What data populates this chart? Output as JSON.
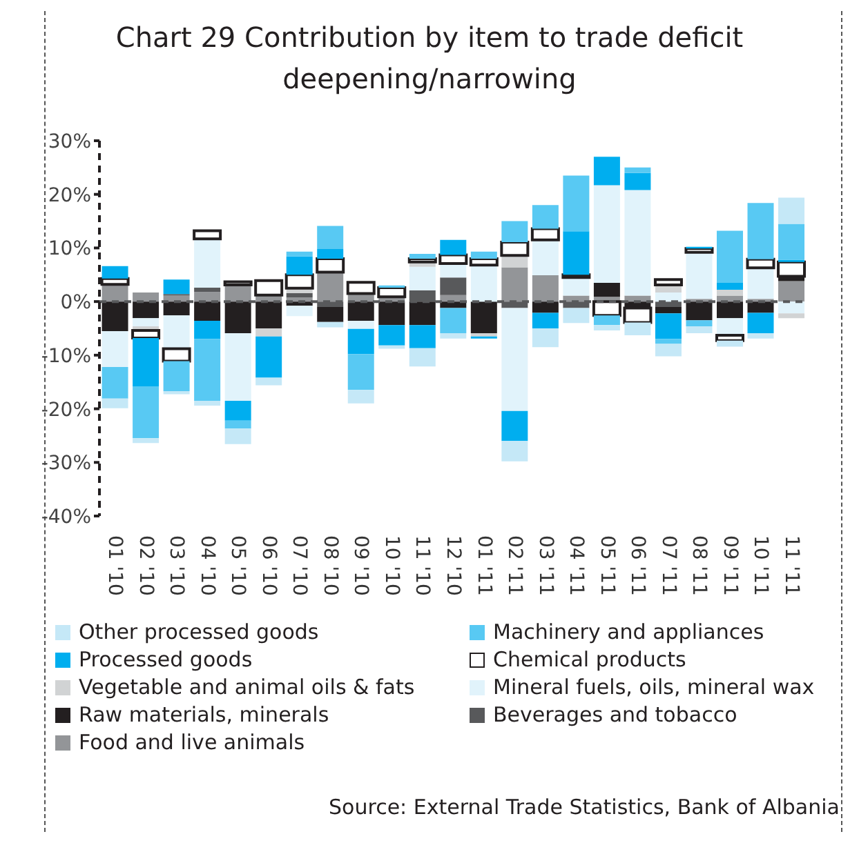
{
  "chart_data": {
    "type": "bar",
    "title": "Chart 29 Contribution by item to trade deficit deepening/narrowing",
    "categories": [
      "01 '10",
      "02 '10",
      "03 '10",
      "04 '10",
      "05 '10",
      "06 '10",
      "07 '10",
      "08 '10",
      "09 '10",
      "10 '10",
      "11 '10",
      "12 '10",
      "01 '11",
      "02 '11",
      "03 '11",
      "04 '11",
      "05 '11",
      "06 '11",
      "07 '11",
      "08 '11",
      "09 '11",
      "10 '11",
      "11 '11"
    ],
    "series": [
      {
        "name": "Food and live animals",
        "color": "#939598",
        "values": [
          3.2,
          1.7,
          1.1,
          1.8,
          3.1,
          1.2,
          0.8,
          5.5,
          1.5,
          0.9,
          null,
          1.2,
          null,
          6.4,
          4.9,
          1.1,
          0.9,
          1.1,
          null,
          0.5,
          1.1,
          0.5,
          3.8
        ]
      },
      {
        "name": "Beverages and tobacco",
        "color": "#58595b",
        "values": [
          null,
          null,
          0.3,
          0.8,
          null,
          null,
          0.8,
          -1.0,
          null,
          null,
          2.1,
          3.3,
          null,
          -1.2,
          null,
          -1.2,
          null,
          null,
          -1.0,
          null,
          null,
          null,
          null
        ]
      },
      {
        "name": "Raw materials, minerals",
        "color": "#231f20",
        "values": [
          -5.5,
          -3.1,
          -2.6,
          -3.6,
          -5.9,
          -5.0,
          -0.8,
          -2.8,
          -3.6,
          -4.4,
          -4.4,
          -1.2,
          -5.9,
          null,
          -2.1,
          null,
          2.6,
          -1.2,
          -1.2,
          -3.5,
          -3.1,
          -2.1,
          0.9
        ]
      },
      {
        "name": "Mineral fuels, oils, mineral wax",
        "color": "#e1f3fb",
        "values": [
          -6.7,
          -1.5,
          -6.2,
          9.1,
          -12.6,
          null,
          -1.9,
          null,
          -1.5,
          null,
          4.4,
          2.6,
          6.8,
          -19.2,
          6.6,
          3.4,
          18.2,
          19.7,
          1.7,
          8.7,
          -3.2,
          5.8,
          -2.2
        ]
      },
      {
        "name": "Vegetable and animal oils & fats",
        "color": "#d1d3d4",
        "values": [
          null,
          -0.8,
          null,
          null,
          null,
          -1.5,
          0.9,
          null,
          null,
          null,
          0.9,
          null,
          -0.6,
          2.2,
          null,
          null,
          null,
          null,
          1.4,
          null,
          1.1,
          null,
          -0.9
        ]
      },
      {
        "name": "Chemical products",
        "color": "#ffffff",
        "values": [
          1.1,
          -1.4,
          -2.3,
          1.5,
          0.6,
          2.7,
          2.5,
          2.5,
          2.1,
          1.7,
          0.6,
          1.6,
          1.2,
          2.5,
          2.1,
          0.5,
          -2.6,
          -2.7,
          1.0,
          0.7,
          -1.0,
          1.6,
          2.7
        ]
      },
      {
        "name": "Processed goods",
        "color": "#00aeef",
        "values": [
          2.3,
          -9.0,
          2.7,
          -3.4,
          -3.7,
          -7.7,
          3.4,
          1.8,
          -4.7,
          -3.8,
          -4.3,
          2.8,
          -0.4,
          -5.6,
          -2.9,
          8.1,
          5.3,
          3.2,
          -4.8,
          0.3,
          1.3,
          -3.8,
          0.4
        ]
      },
      {
        "name": "Machinery and appliances",
        "color": "#58c9f3",
        "values": [
          -5.9,
          -9.7,
          -5.6,
          -11.5,
          -1.5,
          null,
          0.9,
          4.3,
          -6.7,
          0.4,
          0.9,
          -4.7,
          1.3,
          3.9,
          4.4,
          10.4,
          -1.8,
          1.0,
          -0.9,
          -1.1,
          9.7,
          10.5,
          6.7
        ]
      },
      {
        "name": "Other processed goods",
        "color": "#c5e8f7",
        "values": [
          -1.8,
          -0.9,
          -0.6,
          -0.9,
          -2.9,
          -1.4,
          null,
          -1.0,
          -2.5,
          -0.6,
          -3.4,
          -1.0,
          null,
          -3.8,
          -3.5,
          -2.8,
          -1.0,
          -2.4,
          -2.3,
          -1.3,
          -1.1,
          -1.0,
          4.9
        ]
      }
    ],
    "stacked": true,
    "ylim": [
      -40,
      30
    ],
    "yticks": [
      {
        "value": -40,
        "label": "-40%"
      },
      {
        "value": -30,
        "label": "-30%"
      },
      {
        "value": -20,
        "label": "-20%"
      },
      {
        "value": -10,
        "label": "-10%"
      },
      {
        "value": 0,
        "label": "0%"
      },
      {
        "value": 10,
        "label": "10%"
      },
      {
        "value": 20,
        "label": "20%"
      },
      {
        "value": 30,
        "label": "30%"
      }
    ],
    "ref_lines": [
      {
        "axis": "y",
        "value": 0,
        "line_style": "dashed",
        "color": "#58595b"
      }
    ],
    "grid": false,
    "legend": "bottom",
    "annotations": [
      "Source: External Trade Statistics, Bank of Albania"
    ]
  }
}
